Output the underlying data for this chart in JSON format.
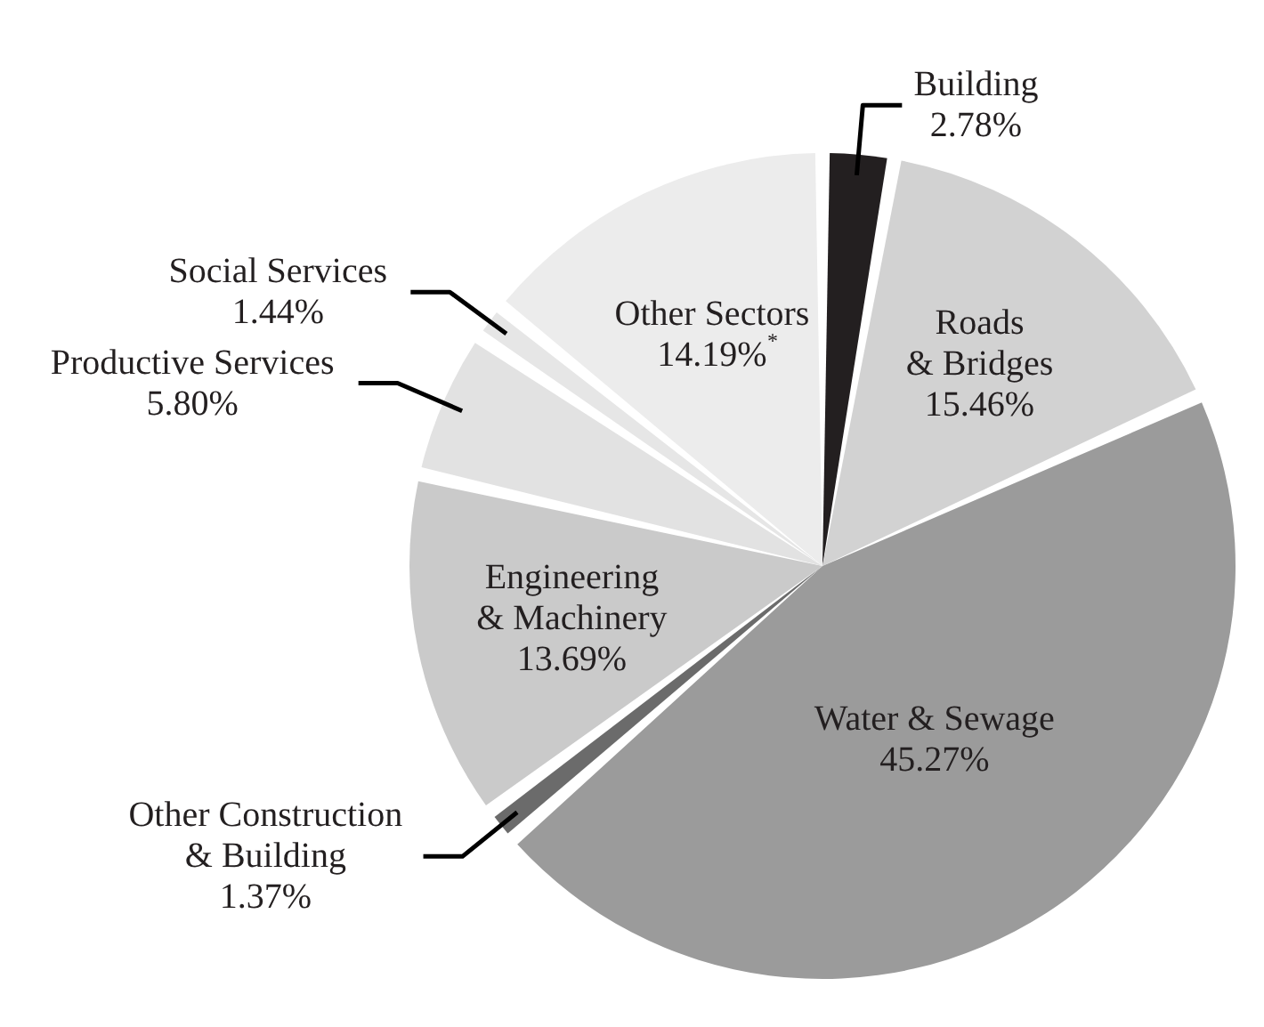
{
  "chart_data": {
    "type": "pie",
    "categories": [
      "Building",
      "Roads & Bridges",
      "Water & Sewage",
      "Other Construction & Building",
      "Engineering & Machinery",
      "Productive Services",
      "Social Services",
      "Other Sectors"
    ],
    "values": [
      2.78,
      15.46,
      45.27,
      1.37,
      13.69,
      5.8,
      1.44,
      14.19
    ],
    "value_labels": [
      "2.78%",
      "15.46%",
      "45.27%",
      "1.37%",
      "13.69%",
      "5.80%",
      "1.44%",
      "14.19%$^{*}$"
    ],
    "colors": [
      "#231f20",
      "#d2d2d2",
      "#9b9b9b",
      "#6b6b6b",
      "#cacaca",
      "#e2e2e2",
      "#e6e6e6",
      "#ececec"
    ]
  }
}
